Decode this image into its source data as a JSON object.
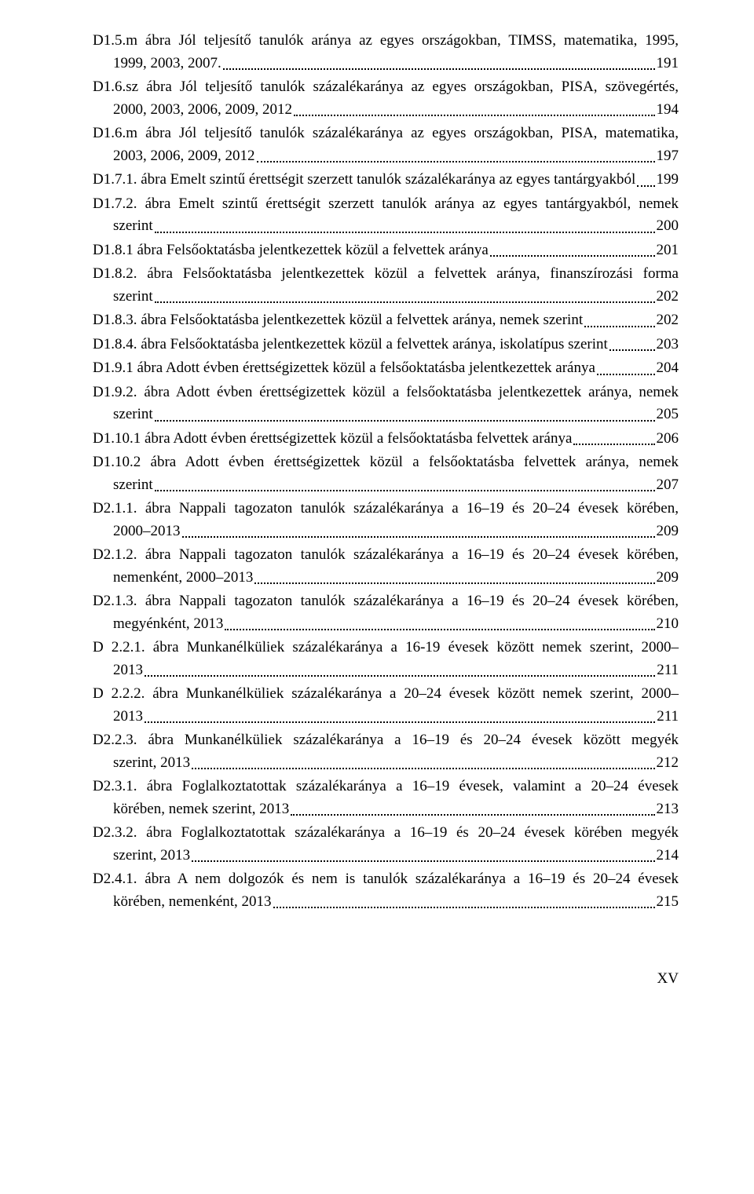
{
  "entries": [
    {
      "type": "multi",
      "top": "D1.5.m ábra Jól teljesítő tanulók aránya az egyes országokban, TIMSS, matematika, 1995,",
      "cont": "1999, 2003, 2007.",
      "page": "191"
    },
    {
      "type": "multi",
      "top": "D1.6.sz ábra Jól teljesítő tanulók százalékaránya az egyes országokban, PISA, szövegértés,",
      "cont": "2000, 2003, 2006, 2009, 2012",
      "page": "194"
    },
    {
      "type": "multi",
      "top": "D1.6.m ábra Jól teljesítő tanulók százalékaránya az egyes országokban, PISA, matematika,",
      "cont": "2003, 2006, 2009, 2012",
      "page": "197"
    },
    {
      "type": "single",
      "label": "D1.7.1. ábra Emelt szintű érettségit szerzett tanulók százalékaránya az egyes tantárgyakból",
      "page": "199"
    },
    {
      "type": "multi",
      "top": "D1.7.2. ábra Emelt szintű érettségit szerzett tanulók aránya az egyes tantárgyakból, nemek",
      "cont": "szerint",
      "page": "200"
    },
    {
      "type": "single",
      "label": "D1.8.1 ábra Felsőoktatásba jelentkezettek közül a felvettek aránya",
      "page": "201"
    },
    {
      "type": "multi",
      "top": "D1.8.2. ábra Felsőoktatásba jelentkezettek közül a felvettek aránya, finanszírozási forma",
      "cont": "szerint",
      "page": "202"
    },
    {
      "type": "single",
      "label": "D1.8.3. ábra Felsőoktatásba jelentkezettek közül a felvettek aránya, nemek szerint",
      "page": "202"
    },
    {
      "type": "single",
      "label": "D1.8.4. ábra Felsőoktatásba jelentkezettek közül a felvettek aránya, iskolatípus szerint",
      "page": "203"
    },
    {
      "type": "single",
      "label": "D1.9.1 ábra Adott évben érettségizettek közül a felsőoktatásba jelentkezettek aránya",
      "page": "204"
    },
    {
      "type": "multi",
      "top": "D1.9.2. ábra Adott évben érettségizettek közül a felsőoktatásba jelentkezettek aránya, nemek",
      "cont": "szerint",
      "page": "205"
    },
    {
      "type": "single",
      "label": "D1.10.1 ábra Adott évben érettségizettek közül a felsőoktatásba felvettek aránya",
      "page": "206"
    },
    {
      "type": "multi",
      "top": "D1.10.2 ábra Adott évben érettségizettek közül a felsőoktatásba felvettek aránya, nemek",
      "cont": "szerint",
      "page": "207"
    },
    {
      "type": "multi",
      "top": "D2.1.1. ábra Nappali tagozaton tanulók százalékaránya a 16–19 és 20–24 évesek körében,",
      "cont": "2000–2013",
      "page": "209"
    },
    {
      "type": "multi",
      "top": "D2.1.2. ábra Nappali tagozaton tanulók százalékaránya a 16–19 és 20–24 évesek körében,",
      "cont": "nemenként, 2000–2013",
      "page": "209"
    },
    {
      "type": "multi",
      "top": "D2.1.3. ábra Nappali tagozaton tanulók százalékaránya a 16–19 és 20–24 évesek körében,",
      "cont": "megyénként, 2013",
      "page": "210"
    },
    {
      "type": "multi",
      "top": "D 2.2.1. ábra Munkanélküliek százalékaránya a 16-19 évesek között nemek szerint, 2000–",
      "cont": "2013",
      "page": "211"
    },
    {
      "type": "multi",
      "top": "D 2.2.2. ábra Munkanélküliek százalékaránya a 20–24 évesek között nemek szerint, 2000–",
      "cont": "2013",
      "page": "211"
    },
    {
      "type": "multi",
      "top": "D2.2.3. ábra Munkanélküliek százalékaránya a 16–19 és 20–24 évesek között megyék",
      "cont": "szerint, 2013",
      "page": "212"
    },
    {
      "type": "multi",
      "top": "D2.3.1. ábra Foglalkoztatottak százalékaránya a 16–19 évesek, valamint a 20–24 évesek",
      "cont": "körében, nemek szerint, 2013",
      "page": "213"
    },
    {
      "type": "multi",
      "top": "D2.3.2. ábra Foglalkoztatottak százalékaránya a 16–19 és 20–24 évesek körében megyék",
      "cont": "szerint, 2013",
      "page": "214"
    },
    {
      "type": "multi",
      "top": "D2.4.1. ábra A nem dolgozók és nem is tanulók százalékaránya a 16–19 és 20–24 évesek",
      "cont": "körében, nemenként, 2013",
      "page": "215"
    }
  ],
  "footer": "XV"
}
